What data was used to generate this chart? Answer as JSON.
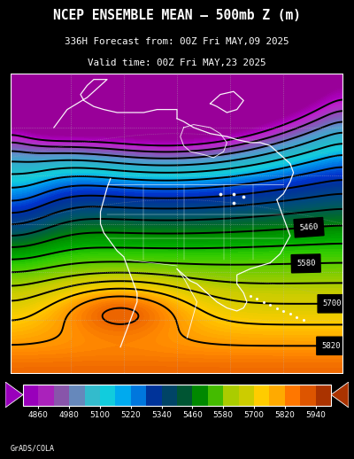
{
  "title_line1": "NCEP ENSEMBLE MEAN – 500mb Z (m)",
  "title_line2": "336H Forecast from: 00Z Fri MAY,09 2025",
  "title_line3": "Valid time: 00Z Fri MAY,23 2025",
  "colorbar_levels": [
    4860,
    4980,
    5100,
    5220,
    5340,
    5460,
    5580,
    5700,
    5820,
    5940
  ],
  "grads_colors": [
    "#990099",
    "#aa00bb",
    "#bb22cc",
    "#9944bb",
    "#7766bb",
    "#5599cc",
    "#33aacc",
    "#22bbcc",
    "#11ccdd",
    "#0099ee",
    "#0066dd",
    "#0033cc",
    "#003399",
    "#004488",
    "#005566",
    "#006633",
    "#008800",
    "#00aa00",
    "#33cc00",
    "#66cc00",
    "#99cc00",
    "#cccc00",
    "#ddcc00",
    "#ffcc00",
    "#ffaa00",
    "#ff8800",
    "#ee6600",
    "#cc5500",
    "#aa4400",
    "#883300",
    "#662200"
  ],
  "cb_colors": [
    "#aa00bb",
    "#9944bb",
    "#5599cc",
    "#33aacc",
    "#11ccdd",
    "#0066dd",
    "#003399",
    "#004488",
    "#005566",
    "#006633",
    "#008800",
    "#33cc00",
    "#99cc00",
    "#ddcc00",
    "#ffaa00",
    "#ee6600",
    "#cc5500",
    "#883300",
    "#662200"
  ],
  "background_color": "#000000",
  "figsize": [
    4.0,
    5.18
  ],
  "dpi": 100
}
